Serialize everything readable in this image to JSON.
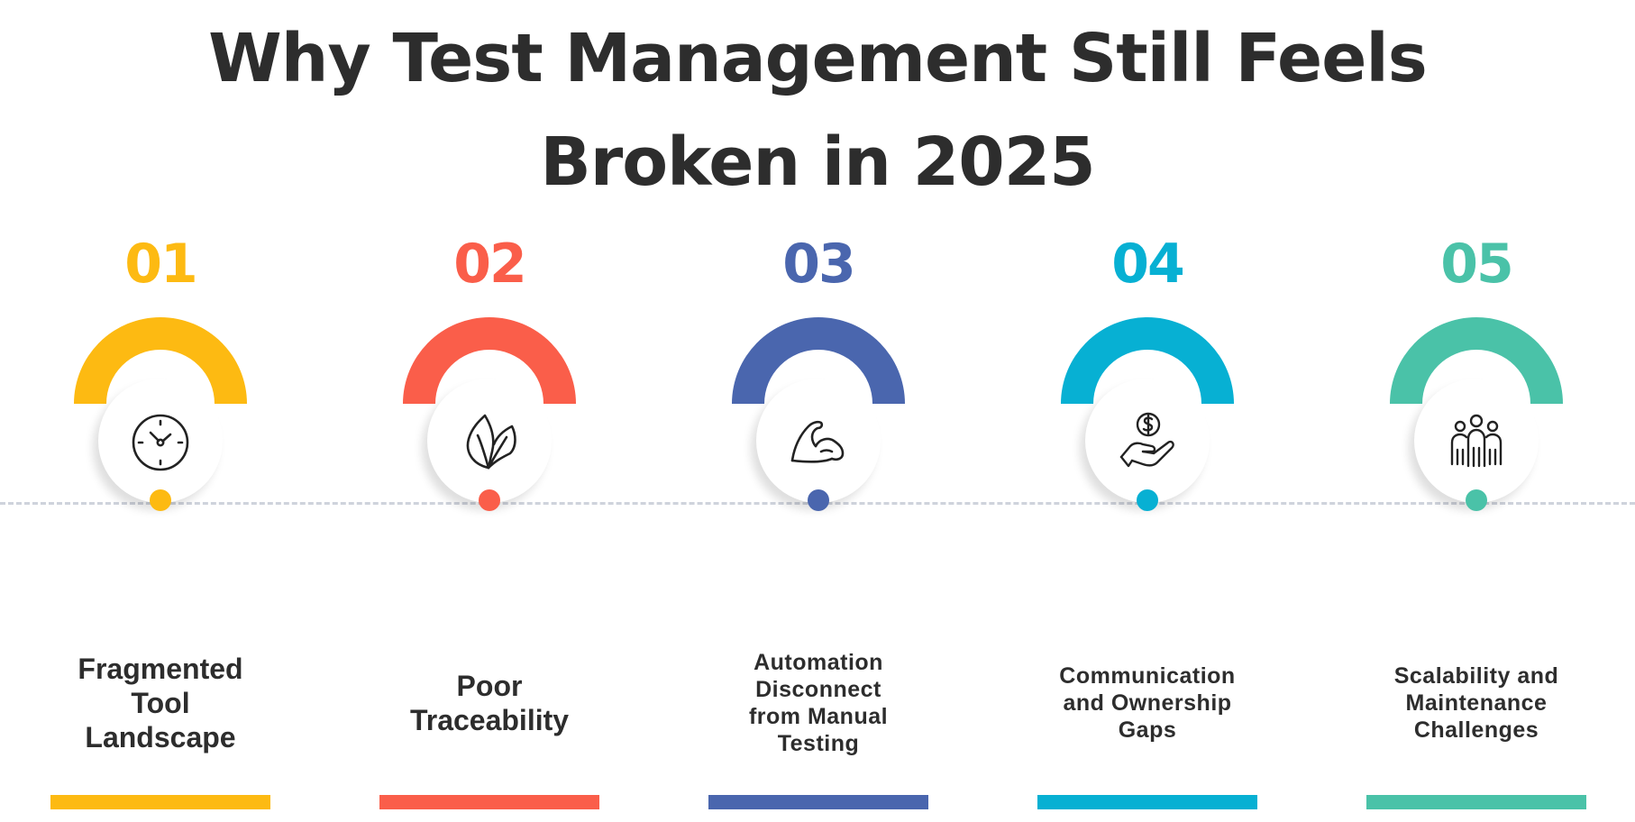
{
  "title": {
    "line1": "Why Test Management Still Feels",
    "line2": "Broken in 2025"
  },
  "steps": [
    {
      "number": "01",
      "label": "Fragmented Tool Landscape",
      "icon": "clock-icon",
      "color": "#FDBA12"
    },
    {
      "number": "02",
      "label": "Poor Traceability",
      "icon": "leaf-icon",
      "color": "#FA5E4A"
    },
    {
      "number": "03",
      "label": "Automation Disconnect from Manual Testing",
      "icon": "flexed-arm-icon",
      "color": "#4A66AE"
    },
    {
      "number": "04",
      "label": "Communication and Ownership Gaps",
      "icon": "dollar-hand-icon",
      "color": "#07B0D3"
    },
    {
      "number": "05",
      "label": "Scalability and Maintenance Challenges",
      "icon": "team-icon",
      "color": "#4AC2A8"
    }
  ]
}
